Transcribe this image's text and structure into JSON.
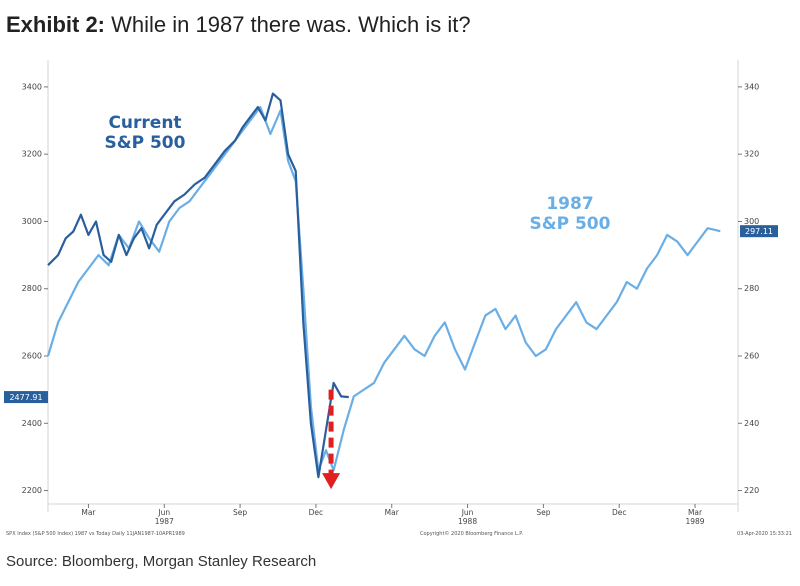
{
  "header": {
    "exhibit": "Exhibit 2:",
    "title": "While in 1987 there was. Which is it?"
  },
  "source": "Source: Bloomberg, Morgan Stanley Research",
  "footnotes": {
    "left": "SPX Index (S&P 500 Index) 1987 vs Today  Daily 11JAN1987-10APR1989",
    "center": "Copyright© 2020 Bloomberg Finance L.P.",
    "right": "03-Apr-2020 15:33:21"
  },
  "chart_data": {
    "type": "line",
    "grid": false,
    "left_axis": {
      "ticks": [
        2200,
        2400,
        2600,
        2800,
        3000,
        3200,
        3400
      ],
      "ylim": [
        2160,
        3480
      ],
      "last_value_label": "2477.91",
      "last_value": 2477.91
    },
    "right_axis": {
      "ticks": [
        220,
        240,
        260,
        280,
        300,
        320,
        340
      ],
      "ylim": [
        216,
        348
      ],
      "last_value_label": "297.11",
      "last_value": 297.11
    },
    "x_axis": {
      "ticks": [
        {
          "label": "Mar",
          "t": 1.6
        },
        {
          "label": "Jun",
          "t": 4.6,
          "year": "1987"
        },
        {
          "label": "Sep",
          "t": 7.6
        },
        {
          "label": "Dec",
          "t": 10.6
        },
        {
          "label": "Mar",
          "t": 13.6
        },
        {
          "label": "Jun",
          "t": 16.6,
          "year": "1988"
        },
        {
          "label": "Sep",
          "t": 19.6
        },
        {
          "label": "Dec",
          "t": 22.6
        },
        {
          "label": "Mar",
          "t": 25.6,
          "year": "1989"
        }
      ],
      "xlim": [
        0,
        27.3
      ]
    },
    "series": [
      {
        "name": "Current S&P 500",
        "label_lines": [
          "Current",
          "S&P 500"
        ],
        "color": "#2a5f9e",
        "axis": "left",
        "points": [
          [
            0,
            2870
          ],
          [
            0.4,
            2900
          ],
          [
            0.7,
            2950
          ],
          [
            1.0,
            2970
          ],
          [
            1.3,
            3020
          ],
          [
            1.6,
            2960
          ],
          [
            1.9,
            3000
          ],
          [
            2.2,
            2900
          ],
          [
            2.5,
            2880
          ],
          [
            2.8,
            2960
          ],
          [
            3.1,
            2900
          ],
          [
            3.4,
            2950
          ],
          [
            3.7,
            2980
          ],
          [
            4.0,
            2920
          ],
          [
            4.3,
            2990
          ],
          [
            4.6,
            3020
          ],
          [
            5.0,
            3060
          ],
          [
            5.4,
            3080
          ],
          [
            5.8,
            3110
          ],
          [
            6.2,
            3130
          ],
          [
            6.6,
            3170
          ],
          [
            7.0,
            3210
          ],
          [
            7.4,
            3240
          ],
          [
            7.7,
            3280
          ],
          [
            8.0,
            3310
          ],
          [
            8.3,
            3340
          ],
          [
            8.6,
            3300
          ],
          [
            8.9,
            3380
          ],
          [
            9.2,
            3360
          ],
          [
            9.5,
            3200
          ],
          [
            9.8,
            3150
          ],
          [
            10.1,
            2700
          ],
          [
            10.4,
            2400
          ],
          [
            10.7,
            2240
          ],
          [
            11.0,
            2380
          ],
          [
            11.3,
            2520
          ],
          [
            11.6,
            2480
          ],
          [
            11.9,
            2477.91
          ]
        ]
      },
      {
        "name": "1987 S&P 500",
        "label_lines": [
          "1987",
          "S&P 500"
        ],
        "color": "#6aaee6",
        "axis": "right",
        "points": [
          [
            0,
            260
          ],
          [
            0.4,
            270
          ],
          [
            0.8,
            276
          ],
          [
            1.2,
            282
          ],
          [
            1.6,
            286
          ],
          [
            2.0,
            290
          ],
          [
            2.4,
            287
          ],
          [
            2.8,
            296
          ],
          [
            3.2,
            292
          ],
          [
            3.6,
            300
          ],
          [
            4.0,
            295
          ],
          [
            4.4,
            291
          ],
          [
            4.8,
            300
          ],
          [
            5.2,
            304
          ],
          [
            5.6,
            306
          ],
          [
            6.0,
            310
          ],
          [
            6.4,
            314
          ],
          [
            6.8,
            318
          ],
          [
            7.2,
            322
          ],
          [
            7.6,
            326
          ],
          [
            8.0,
            330
          ],
          [
            8.4,
            334
          ],
          [
            8.8,
            326
          ],
          [
            9.2,
            333
          ],
          [
            9.5,
            318
          ],
          [
            9.8,
            312
          ],
          [
            10.1,
            280
          ],
          [
            10.4,
            245
          ],
          [
            10.7,
            226
          ],
          [
            11.0,
            232
          ],
          [
            11.3,
            226
          ],
          [
            11.7,
            238
          ],
          [
            12.1,
            248
          ],
          [
            12.5,
            250
          ],
          [
            12.9,
            252
          ],
          [
            13.3,
            258
          ],
          [
            13.7,
            262
          ],
          [
            14.1,
            266
          ],
          [
            14.5,
            262
          ],
          [
            14.9,
            260
          ],
          [
            15.3,
            266
          ],
          [
            15.7,
            270
          ],
          [
            16.1,
            262
          ],
          [
            16.5,
            256
          ],
          [
            16.9,
            264
          ],
          [
            17.3,
            272
          ],
          [
            17.7,
            274
          ],
          [
            18.1,
            268
          ],
          [
            18.5,
            272
          ],
          [
            18.9,
            264
          ],
          [
            19.3,
            260
          ],
          [
            19.7,
            262
          ],
          [
            20.1,
            268
          ],
          [
            20.5,
            272
          ],
          [
            20.9,
            276
          ],
          [
            21.3,
            270
          ],
          [
            21.7,
            268
          ],
          [
            22.1,
            272
          ],
          [
            22.5,
            276
          ],
          [
            22.9,
            282
          ],
          [
            23.3,
            280
          ],
          [
            23.7,
            286
          ],
          [
            24.1,
            290
          ],
          [
            24.5,
            296
          ],
          [
            24.9,
            294
          ],
          [
            25.3,
            290
          ],
          [
            25.7,
            294
          ],
          [
            26.1,
            298
          ],
          [
            26.6,
            297.11
          ]
        ]
      }
    ],
    "annotation": {
      "type": "dashed-arrow",
      "color": "#e02020"
    }
  }
}
